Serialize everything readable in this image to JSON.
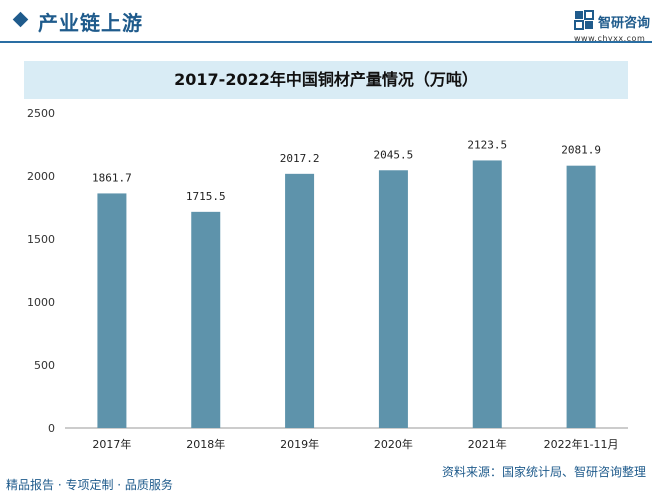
{
  "header": {
    "title": "产业链上游",
    "logo_name": "智研咨询",
    "logo_url": "www.chyxx.com"
  },
  "footer": {
    "left": "精品报告 · 专项定制 · 品质服务",
    "source": "资料来源：国家统计局、智研咨询整理"
  },
  "colors": {
    "bar": "#5e93ab",
    "header": "#1f5b8c",
    "title_band": "#d9ecf5"
  },
  "chart_data": {
    "type": "bar",
    "title": "2017-2022年中国铜材产量情况（万吨）",
    "categories": [
      "2017年",
      "2018年",
      "2019年",
      "2020年",
      "2021年",
      "2022年1-11月"
    ],
    "values": [
      1861.7,
      1715.5,
      2017.2,
      2045.5,
      2123.5,
      2081.9
    ],
    "value_labels": [
      "1861.7",
      "1715.5",
      "2017.2",
      "2045.5",
      "2123.5",
      "2081.9"
    ],
    "ylim": [
      0,
      2500
    ],
    "yticks": [
      0,
      500,
      1000,
      1500,
      2000,
      2500
    ],
    "grid": false,
    "legend": "none"
  }
}
